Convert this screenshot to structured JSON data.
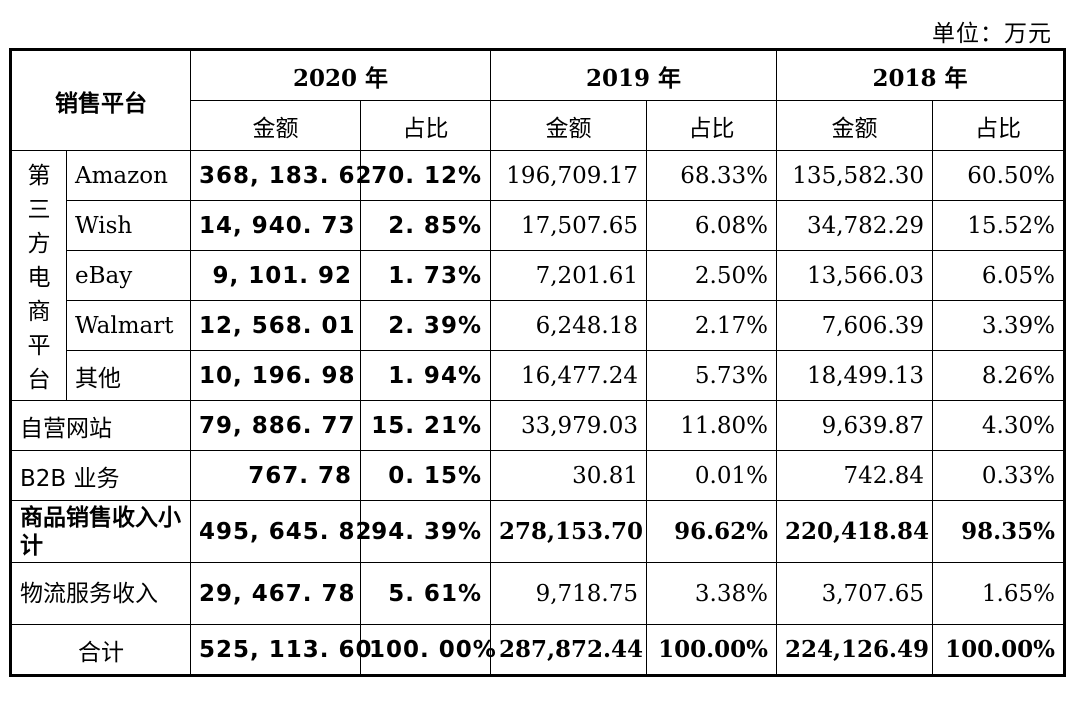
{
  "unit_label": "单位：万元",
  "headers": {
    "platform": "销售平台",
    "y2020": "2020 年",
    "y2019": "2019 年",
    "y2018": "2018 年",
    "amount": "金额",
    "ratio": "占比"
  },
  "group_label_chars": [
    "第",
    "三",
    "方",
    "电",
    "商",
    "平",
    "台"
  ],
  "rows": [
    {
      "name": "Amazon",
      "v2020": "368, 183. 62",
      "p2020": "70. 12%",
      "v2019": "196,709.17",
      "p2019": "68.33%",
      "v2018": "135,582.30",
      "p2018": "60.50%"
    },
    {
      "name": "Wish",
      "v2020": "14, 940. 73",
      "p2020": "2. 85%",
      "v2019": "17,507.65",
      "p2019": "6.08%",
      "v2018": "34,782.29",
      "p2018": "15.52%"
    },
    {
      "name": "eBay",
      "v2020": "9, 101. 92",
      "p2020": "1. 73%",
      "v2019": "7,201.61",
      "p2019": "2.50%",
      "v2018": "13,566.03",
      "p2018": "6.05%"
    },
    {
      "name": "Walmart",
      "v2020": "12, 568. 01",
      "p2020": "2. 39%",
      "v2019": "6,248.18",
      "p2019": "2.17%",
      "v2018": "7,606.39",
      "p2018": "3.39%"
    },
    {
      "name": "其他",
      "v2020": "10, 196. 98",
      "p2020": "1. 94%",
      "v2019": "16,477.24",
      "p2019": "5.73%",
      "v2018": "18,499.13",
      "p2018": "8.26%"
    },
    {
      "name": "自营网站",
      "v2020": "79, 886. 77",
      "p2020": "15. 21%",
      "v2019": "33,979.03",
      "p2019": "11.80%",
      "v2018": "9,639.87",
      "p2018": "4.30%"
    },
    {
      "name": "B2B 业务",
      "v2020": "767. 78",
      "p2020": "0. 15%",
      "v2019": "30.81",
      "p2019": "0.01%",
      "v2018": "742.84",
      "p2018": "0.33%"
    },
    {
      "name": "商品销售收入小计",
      "v2020": "495, 645. 82",
      "p2020": "94. 39%",
      "v2019": "278,153.70",
      "p2019": "96.62%",
      "v2018": "220,418.84",
      "p2018": "98.35%"
    },
    {
      "name": "物流服务收入",
      "v2020": "29, 467. 78",
      "p2020": "5. 61%",
      "v2019": "9,718.75",
      "p2019": "3.38%",
      "v2018": "3,707.65",
      "p2018": "1.65%"
    },
    {
      "name": "合计",
      "v2020": "525, 113. 60",
      "p2020": "100. 00%",
      "v2019": "287,872.44",
      "p2019": "100.00%",
      "v2018": "224,126.49",
      "p2018": "100.00%"
    }
  ]
}
